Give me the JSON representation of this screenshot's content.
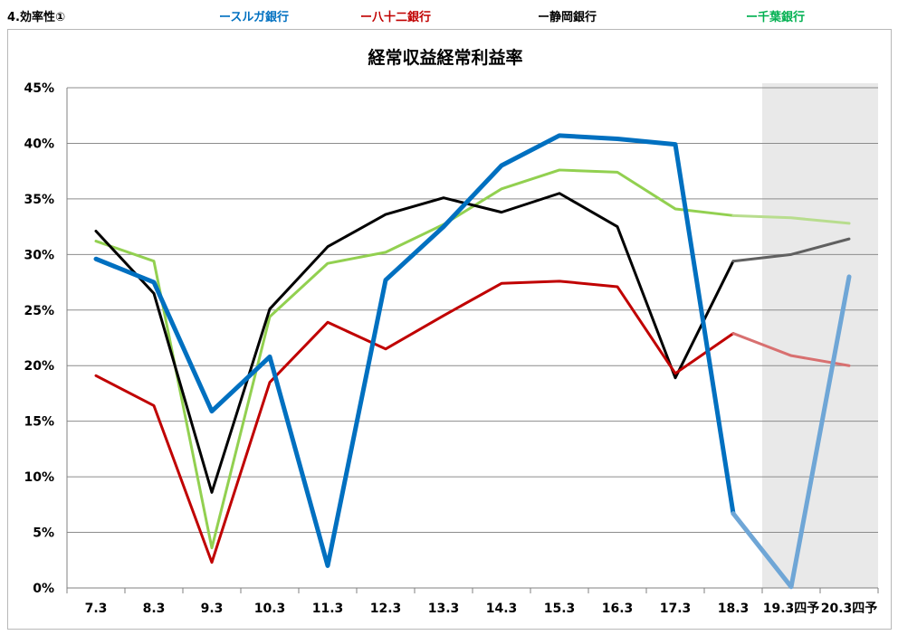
{
  "header": {
    "section": "4.効率性①",
    "legend": [
      {
        "label": "ースルガ銀行",
        "color": "#0070c0"
      },
      {
        "label": "ー八十二銀行",
        "color": "#c00000"
      },
      {
        "label": "ー静岡銀行",
        "color": "#000000"
      },
      {
        "label": "ー千葉銀行",
        "color": "#00b050"
      }
    ]
  },
  "chart_data": {
    "type": "line",
    "title": "経常収益経常利益率",
    "categories": [
      "7.3",
      "8.3",
      "9.3",
      "10.3",
      "11.3",
      "12.3",
      "13.3",
      "14.3",
      "15.3",
      "16.3",
      "17.3",
      "18.3",
      "19.3四予",
      "20.3四予"
    ],
    "forecast_categories": [
      "19.3四予",
      "20.3四予"
    ],
    "ylim": [
      0,
      45
    ],
    "yticks": [
      "0%",
      "5%",
      "10%",
      "15%",
      "20%",
      "25%",
      "30%",
      "35%",
      "40%",
      "45%"
    ],
    "grid": true,
    "series": [
      {
        "name": "スルガ銀行",
        "color": "#0070c0",
        "forecast_color": "#6fa6d6",
        "values": [
          29.6,
          27.5,
          15.9,
          20.8,
          2.0,
          27.7,
          32.5,
          38.0,
          40.7,
          40.4,
          39.9,
          6.7,
          0.1,
          28.0
        ]
      },
      {
        "name": "八十二銀行",
        "color": "#c00000",
        "forecast_color": "#d87070",
        "values": [
          19.1,
          16.4,
          2.3,
          18.5,
          23.9,
          21.5,
          24.5,
          27.4,
          27.6,
          27.1,
          19.3,
          22.9,
          20.9,
          20.0
        ]
      },
      {
        "name": "静岡銀行",
        "color": "#000000",
        "forecast_color": "#606060",
        "values": [
          32.1,
          26.5,
          8.6,
          25.1,
          30.7,
          33.6,
          35.1,
          33.8,
          35.5,
          32.5,
          18.9,
          29.4,
          30.0,
          31.4
        ]
      },
      {
        "name": "千葉銀行",
        "color": "#92d050",
        "forecast_color": "#b8dd8e",
        "values": [
          31.2,
          29.4,
          3.6,
          24.4,
          29.2,
          30.2,
          32.7,
          35.9,
          37.6,
          37.4,
          34.1,
          33.5,
          33.3,
          32.8
        ]
      }
    ]
  }
}
